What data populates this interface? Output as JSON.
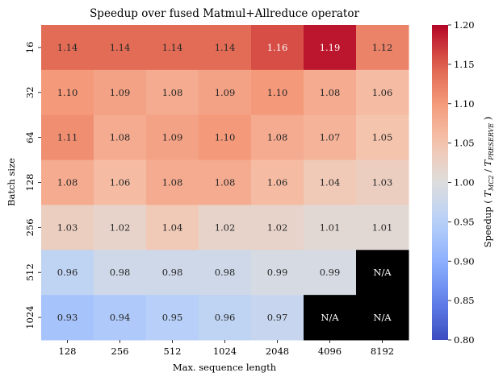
{
  "chart_data": {
    "type": "heatmap",
    "title": "Speedup over fused Matmul+Allreduce operator",
    "xlabel": "Max. sequence length",
    "ylabel": "Batch size",
    "x_categories": [
      "128",
      "256",
      "512",
      "1024",
      "2048",
      "4096",
      "8192"
    ],
    "y_categories": [
      "16",
      "32",
      "64",
      "128",
      "256",
      "512",
      "1024"
    ],
    "values": [
      [
        1.14,
        1.14,
        1.14,
        1.14,
        1.16,
        1.19,
        1.12
      ],
      [
        1.1,
        1.09,
        1.08,
        1.09,
        1.1,
        1.08,
        1.06
      ],
      [
        1.11,
        1.08,
        1.09,
        1.1,
        1.08,
        1.07,
        1.05
      ],
      [
        1.08,
        1.06,
        1.08,
        1.08,
        1.06,
        1.04,
        1.03
      ],
      [
        1.03,
        1.02,
        1.04,
        1.02,
        1.02,
        1.01,
        1.01
      ],
      [
        0.96,
        0.98,
        0.98,
        0.98,
        0.99,
        0.99,
        null
      ],
      [
        0.93,
        0.94,
        0.95,
        0.96,
        0.97,
        null,
        null
      ]
    ],
    "missing_label": "N/A",
    "colormap": "coolwarm",
    "vmin": 0.8,
    "vmax": 1.2,
    "colorbar": {
      "label_prefix": "Speedup ( ",
      "t1_base": "T",
      "t1_sub": "MC2",
      "slash": " / ",
      "t2_base": "T",
      "t2_sub": "PRESERVE",
      "label_suffix": " )",
      "ticks": [
        "0.80",
        "0.85",
        "0.90",
        "0.95",
        "1.00",
        "1.05",
        "1.10",
        "1.15",
        "1.20"
      ]
    },
    "missing_color": "#000000"
  }
}
